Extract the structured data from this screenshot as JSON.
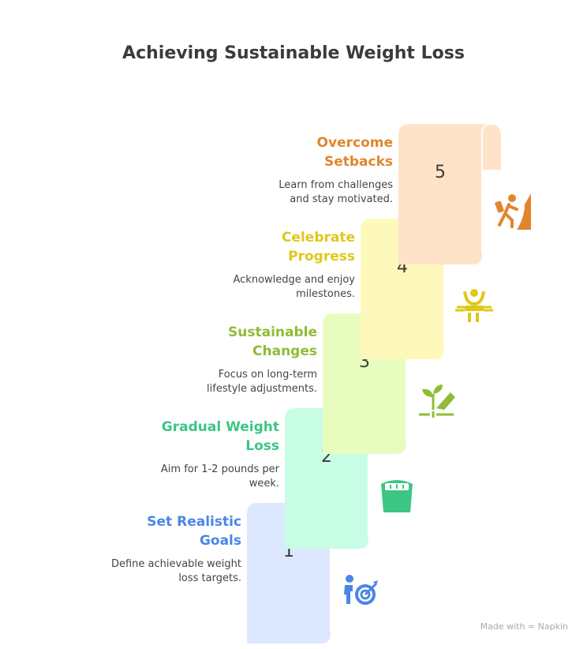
{
  "title": "Achieving Sustainable Weight Loss",
  "steps": [
    {
      "number": "1",
      "title_l1": "Set Realistic",
      "title_l2": "Goals",
      "desc_l1": "Define achievable weight",
      "desc_l2": "loss targets.",
      "color": "#4a86e8",
      "fill": "#dce8fd",
      "icon": "person-target-icon"
    },
    {
      "number": "2",
      "title_l1": "Gradual Weight",
      "title_l2": "Loss",
      "desc_l1": "Aim for 1-2 pounds per",
      "desc_l2": "week.",
      "color": "#3cc683",
      "fill": "#c8fde5",
      "icon": "scale-icon"
    },
    {
      "number": "3",
      "title_l1": "Sustainable",
      "title_l2": "Changes",
      "desc_l1": "Focus on long-term",
      "desc_l2": "lifestyle adjustments.",
      "color": "#8fbc35",
      "fill": "#e8fcc0",
      "icon": "plant-hand-icon"
    },
    {
      "number": "4",
      "title_l1": "Celebrate",
      "title_l2": "Progress",
      "desc_l1": "Acknowledge and enjoy",
      "desc_l2": "milestones.",
      "color": "#e0c81a",
      "fill": "#fff8bb",
      "icon": "celebrate-finish-icon"
    },
    {
      "number": "5",
      "title_l1": "Overcome",
      "title_l2": "Setbacks",
      "desc_l1": "Learn from challenges",
      "desc_l2": "and stay motivated.",
      "color": "#e0862e",
      "fill": "#ffe3c9",
      "icon": "climber-icon"
    }
  ],
  "footer": "Made with ≈ Napkin"
}
